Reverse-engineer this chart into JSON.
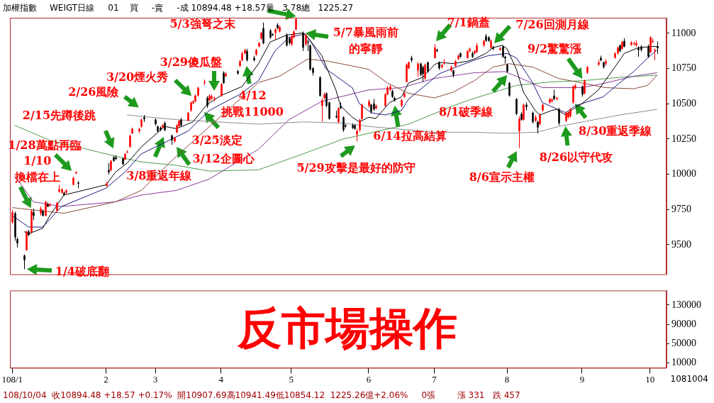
{
  "chart_data": [
    {
      "type": "candlestick",
      "title": "加權指數",
      "subtitle": "WEIGT日線     01    買     -賣     -成 10894.48 +18.57量   3.78總   1225.27",
      "x": [
        "--01-02",
        "--01-03",
        "--01-04",
        "--01-07",
        "--01-08",
        "--01-09",
        "--01-10",
        "--01-11",
        "--01-14",
        "--01-15",
        "--01-16",
        "--01-17",
        "--01-18",
        "--01-21",
        "--01-22",
        "--01-23",
        "--01-24",
        "--01-25",
        "--01-28",
        "--01-29",
        "--01-30",
        "--02-11",
        "--02-12",
        "--02-13",
        "--02-14",
        "--02-15",
        "--02-18",
        "--02-19",
        "--02-20",
        "--02-21",
        "--02-22",
        "--02-25",
        "--02-26",
        "--02-27",
        "--03-04",
        "--03-05",
        "--03-06",
        "--03-07",
        "--03-08",
        "--03-11",
        "--03-12",
        "--03-13",
        "--03-14",
        "--03-15",
        "--03-18",
        "--03-19",
        "--03-20",
        "--03-21",
        "--03-22",
        "--03-25",
        "--03-26",
        "--03-27",
        "--03-28",
        "--03-29",
        "--04-01",
        "--04-02",
        "--04-03",
        "--04-08",
        "--04-09",
        "--04-10",
        "--04-11",
        "--04-12",
        "--04-15",
        "--04-16",
        "--04-17",
        "--04-18",
        "--04-19",
        "--04-22",
        "--04-23",
        "--04-24",
        "--04-25",
        "--04-26",
        "--04-29",
        "--04-30",
        "--05-01",
        "--05-02",
        "--05-03",
        "--05-06",
        "--05-07",
        "--05-08",
        "--05-09",
        "--05-10",
        "--05-13",
        "--05-14",
        "--05-15",
        "--05-16",
        "--05-17",
        "--05-20",
        "--05-21",
        "--05-22",
        "--05-23",
        "--05-24",
        "--05-27",
        "--05-28",
        "--05-29",
        "--05-30",
        "--05-31",
        "--06-03",
        "--06-04",
        "--06-05",
        "--06-06",
        "--06-10",
        "--06-11",
        "--06-12",
        "--06-13",
        "--06-14",
        "--06-17",
        "--06-18",
        "--06-19",
        "--06-20",
        "--06-21",
        "--06-24",
        "--06-25",
        "--06-26",
        "--06-27",
        "--06-28",
        "--07-01",
        "--07-02",
        "--07-03",
        "--07-04",
        "--07-05",
        "--07-08",
        "--07-09",
        "--07-10",
        "--07-11",
        "--07-12",
        "--07-15",
        "--07-16",
        "--07-17",
        "--07-18",
        "--07-19",
        "--07-22",
        "--07-23",
        "--07-24",
        "--07-25",
        "--07-26",
        "--07-29",
        "--07-30",
        "--07-31",
        "--08-01",
        "--08-02",
        "--08-05",
        "--08-06",
        "--08-07",
        "--08-08",
        "--08-09",
        "--08-12",
        "--08-13",
        "--08-14",
        "--08-15",
        "--08-16",
        "--08-19",
        "--08-20",
        "--08-21",
        "--08-22",
        "--08-23",
        "--08-26",
        "--08-27",
        "--08-28",
        "--08-29",
        "--08-30",
        "--09-02",
        "--09-03",
        "--09-04",
        "--09-09",
        "--09-10",
        "--09-11",
        "--09-12",
        "--09-16",
        "--09-17",
        "--09-18",
        "--09-19",
        "--09-20",
        "--09-23",
        "--09-24",
        "--09-25",
        "--09-26",
        "--09-27",
        "--09-30",
        "--10-01",
        "--10-02",
        "--10-03",
        "--10-04"
      ],
      "ohlc": [
        [
          9658,
          9747,
          9650,
          9731
        ],
        [
          9723,
          9735,
          9528,
          9552
        ],
        [
          9540,
          9552,
          9480,
          9510
        ],
        [
          9423,
          9431,
          9326,
          9390
        ],
        [
          9463,
          9600,
          9455,
          9593
        ],
        [
          9593,
          9605,
          9560,
          9569
        ],
        [
          9585,
          9750,
          9580,
          9739
        ],
        [
          9730,
          9755,
          9674,
          9706
        ],
        [
          9723,
          9771,
          9706,
          9755
        ],
        [
          9739,
          9750,
          9700,
          9706
        ],
        [
          9706,
          9812,
          9700,
          9804
        ],
        [
          9787,
          9800,
          9765,
          9771
        ],
        [
          9775,
          9795,
          9770,
          9787
        ],
        [
          9739,
          9804,
          9735,
          9796
        ],
        [
          9877,
          9925,
          9869,
          9893
        ],
        [
          9869,
          9900,
          9860,
          9893
        ],
        [
          9869,
          9877,
          9845,
          9852
        ],
        [
          9869,
          9893,
          9860,
          9885
        ],
        [
          9925,
          9982,
          9920,
          9974
        ],
        [
          10007,
          10020,
          10000,
          10015
        ],
        [
          9941,
          9950,
          9900,
          9933
        ],
        [
          9917,
          9945,
          9910,
          9933
        ],
        [
          10030,
          10079,
          9998,
          10014
        ],
        [
          10030,
          10100,
          10020,
          10095
        ],
        [
          10120,
          10130,
          10088,
          10095
        ],
        [
          10120,
          10135,
          10100,
          10108
        ],
        [
          10112,
          10120,
          10065,
          10071
        ],
        [
          10104,
          10150,
          10100,
          10144
        ],
        [
          10155,
          10170,
          10150,
          10160
        ],
        [
          10193,
          10280,
          10190,
          10274
        ],
        [
          10290,
          10330,
          10285,
          10322
        ],
        [
          10305,
          10330,
          10290,
          10320
        ],
        [
          10339,
          10395,
          10330,
          10387
        ],
        [
          10403,
          10420,
          10371,
          10390
        ],
        [
          10387,
          10395,
          10345,
          10355
        ],
        [
          10339,
          10345,
          10298,
          10306
        ],
        [
          10330,
          10340,
          10305,
          10314
        ],
        [
          10330,
          10355,
          10325,
          10347
        ],
        [
          10363,
          10375,
          10305,
          10314
        ],
        [
          10274,
          10282,
          10209,
          10241
        ],
        [
          10233,
          10265,
          10225,
          10257
        ],
        [
          10298,
          10355,
          10290,
          10347
        ],
        [
          10339,
          10385,
          10330,
          10379
        ],
        [
          10387,
          10400,
          10340,
          10347
        ],
        [
          10379,
          10440,
          10375,
          10436
        ],
        [
          10452,
          10515,
          10445,
          10509
        ],
        [
          10504,
          10525,
          10498,
          10517
        ],
        [
          10517,
          10565,
          10510,
          10558
        ],
        [
          10558,
          10620,
          10550,
          10614
        ],
        [
          10647,
          10671,
          10630,
          10655
        ],
        [
          10541,
          10555,
          10470,
          10485
        ],
        [
          10525,
          10565,
          10515,
          10558
        ],
        [
          10536,
          10565,
          10525,
          10553
        ],
        [
          10533,
          10550,
          10517,
          10541
        ],
        [
          10557,
          10645,
          10550,
          10639
        ],
        [
          10720,
          10730,
          10640,
          10647
        ],
        [
          10695,
          10725,
          10690,
          10712
        ],
        [
          10731,
          10740,
          10705,
          10715
        ],
        [
          10768,
          10810,
          10760,
          10801
        ],
        [
          10809,
          10870,
          10800,
          10857
        ],
        [
          10857,
          10890,
          10850,
          10882
        ],
        [
          10874,
          10890,
          10800,
          10809
        ],
        [
          10825,
          10840,
          10800,
          10809
        ],
        [
          10849,
          10890,
          10840,
          10882
        ],
        [
          10906,
          10940,
          10900,
          10930
        ],
        [
          10963,
          11010,
          10955,
          11003
        ],
        [
          11036,
          11076,
          10922,
          10930
        ],
        [
          11019,
          11030,
          10960,
          10971
        ],
        [
          10995,
          11000,
          10980,
          10987
        ],
        [
          11003,
          11035,
          10955,
          11028
        ],
        [
          11060,
          11071,
          11028,
          11036
        ],
        [
          11012,
          11055,
          11005,
          11044
        ],
        [
          10987,
          11000,
          10905,
          10914
        ],
        [
          10963,
          10975,
          10920,
          10930
        ],
        [
          10922,
          10990,
          10910,
          10979
        ],
        [
          10971,
          11020,
          10965,
          11012
        ],
        [
          11028,
          11104,
          11020,
          11101
        ],
        [
          11003,
          11012,
          10874,
          10898
        ],
        [
          10922,
          10995,
          10910,
          10987
        ],
        [
          10942,
          10955,
          10874,
          10935
        ],
        [
          10914,
          10920,
          10735,
          10744
        ],
        [
          10752,
          10760,
          10700,
          10720
        ],
        [
          10687,
          10695,
          10550,
          10557
        ],
        [
          10485,
          10540,
          10371,
          10525
        ],
        [
          10541,
          10580,
          10530,
          10565
        ],
        [
          10574,
          10580,
          10475,
          10485
        ],
        [
          10509,
          10515,
          10385,
          10395
        ],
        [
          10412,
          10450,
          10395,
          10404
        ],
        [
          10371,
          10475,
          10360,
          10468
        ],
        [
          10485,
          10509,
          10460,
          10468
        ],
        [
          10404,
          10410,
          10300,
          10314
        ],
        [
          10347,
          10355,
          10330,
          10339
        ],
        [
          10347,
          10360,
          10320,
          10330
        ],
        [
          10347,
          10355,
          10315,
          10322
        ],
        [
          10282,
          10322,
          10233,
          10306
        ],
        [
          10314,
          10395,
          10300,
          10384
        ],
        [
          10395,
          10500,
          10385,
          10493
        ],
        [
          10485,
          10530,
          10470,
          10517
        ],
        [
          10493,
          10500,
          10430,
          10444
        ],
        [
          10501,
          10533,
          10450,
          10460
        ],
        [
          10468,
          10495,
          10460,
          10485
        ],
        [
          10485,
          10575,
          10478,
          10566
        ],
        [
          10566,
          10625,
          10560,
          10614
        ],
        [
          10598,
          10635,
          10590,
          10622
        ],
        [
          10590,
          10600,
          10540,
          10549
        ],
        [
          10541,
          10550,
          10515,
          10525
        ],
        [
          10485,
          10535,
          10475,
          10525
        ],
        [
          10549,
          10580,
          10540,
          10574
        ],
        [
          10655,
          10785,
          10650,
          10776
        ],
        [
          10752,
          10800,
          10745,
          10793
        ],
        [
          10825,
          10840,
          10793,
          10809
        ],
        [
          10736,
          10795,
          10690,
          10785
        ],
        [
          10785,
          10790,
          10695,
          10704
        ],
        [
          10760,
          10770,
          10655,
          10712
        ],
        [
          10679,
          10785,
          10670,
          10776
        ],
        [
          10793,
          10800,
          10720,
          10728
        ],
        [
          10825,
          10922,
          10820,
          10898
        ],
        [
          10882,
          10890,
          10865,
          10874
        ],
        [
          10793,
          10800,
          10740,
          10752
        ],
        [
          10760,
          10780,
          10750,
          10776
        ],
        [
          10785,
          10817,
          10777,
          10793
        ],
        [
          10736,
          10770,
          10725,
          10760
        ],
        [
          10736,
          10740,
          10687,
          10704
        ],
        [
          10768,
          10810,
          10760,
          10801
        ],
        [
          10817,
          10850,
          10810,
          10841
        ],
        [
          10857,
          10865,
          10825,
          10833
        ],
        [
          10825,
          10880,
          10820,
          10874
        ],
        [
          10874,
          10898,
          10865,
          10890
        ],
        [
          10857,
          10870,
          10825,
          10833
        ],
        [
          10857,
          10880,
          10850,
          10874
        ],
        [
          10866,
          10930,
          10860,
          10914
        ],
        [
          10914,
          10955,
          10905,
          10946
        ],
        [
          10979,
          10995,
          10940,
          10946
        ],
        [
          10971,
          10980,
          10940,
          10946
        ],
        [
          10898,
          10955,
          10890,
          10946
        ],
        [
          10901,
          10910,
          10880,
          10890
        ],
        [
          10882,
          10900,
          10875,
          10893
        ],
        [
          10906,
          10915,
          10825,
          10833
        ],
        [
          10833,
          10840,
          10785,
          10822
        ],
        [
          10776,
          10785,
          10720,
          10728
        ],
        [
          10647,
          10655,
          10550,
          10558
        ],
        [
          10533,
          10540,
          10420,
          10428
        ],
        [
          10306,
          10412,
          10185,
          10395
        ],
        [
          10428,
          10440,
          10380,
          10387
        ],
        [
          10387,
          10500,
          10380,
          10493
        ],
        [
          10493,
          10509,
          10452,
          10476
        ],
        [
          10436,
          10445,
          10360,
          10371
        ],
        [
          10379,
          10420,
          10371,
          10404
        ],
        [
          10371,
          10380,
          10290,
          10331
        ],
        [
          10355,
          10430,
          10345,
          10420
        ],
        [
          10452,
          10500,
          10445,
          10493
        ],
        [
          10509,
          10540,
          10500,
          10533
        ],
        [
          10517,
          10540,
          10510,
          10530
        ],
        [
          10557,
          10598,
          10525,
          10533
        ],
        [
          10533,
          10550,
          10525,
          10541
        ],
        [
          10460,
          10470,
          10347,
          10363
        ],
        [
          10379,
          10445,
          10370,
          10436
        ],
        [
          10404,
          10445,
          10395,
          10436
        ],
        [
          10412,
          10470,
          10400,
          10460
        ],
        [
          10509,
          10630,
          10500,
          10622
        ],
        [
          10614,
          10640,
          10600,
          10630
        ],
        [
          10622,
          10630,
          10550,
          10565
        ],
        [
          10574,
          10670,
          10565,
          10663
        ],
        [
          10720,
          10768,
          10712,
          10760
        ],
        [
          10776,
          10810,
          10770,
          10793
        ],
        [
          10825,
          10841,
          10800,
          10809
        ],
        [
          10793,
          10800,
          10750,
          10760
        ],
        [
          10785,
          10815,
          10770,
          10801
        ],
        [
          10825,
          10865,
          10820,
          10857
        ],
        [
          10857,
          10905,
          10850,
          10898
        ],
        [
          10914,
          10920,
          10865,
          10874
        ],
        [
          10890,
          10945,
          10885,
          10938
        ],
        [
          10946,
          10965,
          10900,
          10906
        ],
        [
          10919,
          10945,
          10910,
          10935
        ],
        [
          10922,
          10940,
          10915,
          10930
        ],
        [
          10914,
          10950,
          10905,
          10930
        ],
        [
          10893,
          10906,
          10833,
          10880
        ],
        [
          10906,
          10915,
          10870,
          10882
        ],
        [
          10906,
          10920,
          10825,
          10833
        ],
        [
          10865,
          10979,
          10860,
          10971
        ],
        [
          10938,
          10965,
          10930,
          10946
        ],
        [
          10874,
          10890,
          10809,
          10882
        ],
        [
          10907.69,
          10941.49,
          10854.12,
          10894.48
        ]
      ],
      "series": [
        {
          "type": "line",
          "color": "#000000",
          "x": [
            "--01-07",
            "--01-09",
            "--01-15",
            "--01-18",
            "--01-24",
            "--02-11",
            "--02-15",
            "--02-20",
            "--02-26",
            "--03-08",
            "--03-13",
            "--03-20",
            "--03-26",
            "--04-01",
            "--04-10",
            "--04-17",
            "--04-22",
            "--04-29",
            "--05-06",
            "--05-08",
            "--05-14",
            "--05-20",
            "--05-22",
            "--05-27",
            "--05-30",
            "--06-03",
            "--06-06",
            "--06-12",
            "--06-17",
            "--06-20",
            "--06-26",
            "--07-01",
            "--07-03",
            "--07-09",
            "--07-15",
            "--07-18",
            "--07-23",
            "--07-26",
            "--07-30",
            "--08-01",
            "--08-05",
            "--08-08",
            "--08-13",
            "--08-15",
            "--08-20",
            "--08-22",
            "--08-26",
            "--08-29",
            "--09-02",
            "--09-09",
            "--09-16",
            "--09-20",
            "--09-26",
            "--10-02",
            "--10-04"
          ],
          "values": [
            9593,
            9577,
            9617,
            9706,
            9852,
            9925,
            10014,
            10079,
            10193,
            10339,
            10323,
            10371,
            10493,
            10558,
            10622,
            10784,
            10938,
            10987,
            11003,
            10971,
            10841,
            10598,
            10485,
            10404,
            10371,
            10404,
            10395,
            10509,
            10549,
            10647,
            10687,
            10776,
            10793,
            10785,
            10801,
            10817,
            10857,
            10898,
            10914,
            10890,
            10744,
            10582,
            10452,
            10420,
            10452,
            10460,
            10420,
            10460,
            10501,
            10598,
            10760,
            10857,
            10898,
            10906,
            10906
          ]
        },
        {
          "type": "line",
          "color": "#1c1c80",
          "x": [
            "--01-02",
            "--01-09",
            "--01-15",
            "--01-23",
            "--02-11",
            "--02-19",
            "--02-26",
            "--03-18",
            "--03-27",
            "--04-09",
            "--04-17",
            "--04-24",
            "--04-30",
            "--05-07",
            "--05-10",
            "--05-16",
            "--05-27",
            "--05-30",
            "--06-04",
            "--06-10",
            "--06-17",
            "--06-20",
            "--06-26",
            "--07-03",
            "--07-09",
            "--07-18",
            "--07-24",
            "--08-01",
            "--08-05",
            "--08-12",
            "--08-16",
            "--08-26",
            "--08-30",
            "--09-11",
            "--09-18",
            "--09-24",
            "--09-30",
            "--10-04"
          ],
          "values": [
            9707,
            9625,
            9625,
            9771,
            9901,
            10014,
            10144,
            10306,
            10452,
            10566,
            10663,
            10874,
            10971,
            10995,
            10922,
            10744,
            10614,
            10501,
            10436,
            10420,
            10452,
            10533,
            10614,
            10712,
            10752,
            10809,
            10841,
            10857,
            10825,
            10647,
            10509,
            10436,
            10485,
            10549,
            10647,
            10728,
            10825,
            10882
          ]
        },
        {
          "type": "line",
          "color": "#8b4a3a",
          "x": [
            "--01-02",
            "--01-15",
            "--01-24",
            "--02-15",
            "--02-26",
            "--03-13",
            "--04-17",
            "--04-26",
            "--05-08",
            "--05-17",
            "--06-03",
            "--06-11",
            "--06-20",
            "--07-01",
            "--07-09",
            "--07-18",
            "--07-26",
            "--08-02",
            "--08-12",
            "--08-23",
            "--09-02",
            "--09-12",
            "--09-24",
            "--09-30",
            "--10-04"
          ],
          "values": [
            9763,
            9739,
            9723,
            9804,
            9885,
            10128,
            10650,
            10695,
            10817,
            10801,
            10744,
            10647,
            10574,
            10541,
            10582,
            10663,
            10760,
            10784,
            10760,
            10679,
            10647,
            10614,
            10606,
            10630,
            10703
          ]
        },
        {
          "type": "line",
          "color": "#8a3a9a",
          "x": [
            "--01-03",
            "--01-11",
            "--01-23",
            "--02-15",
            "--02-26",
            "--03-13",
            "--03-27",
            "--04-17",
            "--04-30",
            "--05-14",
            "--06-03",
            "--06-17",
            "--07-01",
            "--07-18",
            "--07-31",
            "--08-05",
            "--08-16",
            "--09-02",
            "--09-12",
            "--09-24",
            "--10-04"
          ],
          "values": [
            9990,
            9804,
            9771,
            9804,
            9852,
            9885,
            9966,
            10177,
            10387,
            10517,
            10598,
            10614,
            10679,
            10720,
            10728,
            10695,
            10614,
            10614,
            10647,
            10695,
            10720
          ]
        },
        {
          "type": "line",
          "color": "#4a9a4a",
          "x": [
            "--01-03",
            "--01-18",
            "--02-15",
            "--02-26",
            "--03-13",
            "--03-27",
            "--04-17",
            "--05-06",
            "--05-23",
            "--06-03",
            "--06-20",
            "--07-09",
            "--07-17",
            "--08-05",
            "--08-20",
            "--09-02",
            "--09-18",
            "--10-04"
          ],
          "values": [
            10347,
            10241,
            10128,
            10087,
            10063,
            10022,
            10031,
            10144,
            10249,
            10290,
            10355,
            10485,
            10533,
            10630,
            10655,
            10663,
            10687,
            10703
          ]
        },
        {
          "type": "line",
          "color": "#8c8c8c",
          "x": [
            "--02-20",
            "--03-13",
            "--04-17",
            "--05-06",
            "--05-23",
            "--06-03",
            "--07-01",
            "--07-18",
            "--07-31",
            "--08-14",
            "--08-23",
            "--09-18",
            "--10-04"
          ],
          "values": [
            10420,
            10387,
            10355,
            10371,
            10363,
            10339,
            10298,
            10298,
            10290,
            10298,
            10339,
            10420,
            10460
          ]
        }
      ],
      "xlim": [
        "--01-01",
        "--10-08"
      ],
      "ylim": [
        9290,
        11110
      ],
      "yticks": [
        9500,
        9750,
        10000,
        10250,
        10500,
        10750,
        11000
      ],
      "tick_labels": "y",
      "annotations": [
        "1/4破底翻",
        {
          "text": "1/10\n換檔在上",
          "x": "--01-10",
          "y": 9760
        },
        "1/28萬點再臨",
        "2/15先蹲後跳",
        "2/26風險",
        "3/20煙火秀",
        "3/29傻瓜盤",
        "3/8重返年線",
        "3/12企圖心",
        {
          "text": "3/25淡定",
          "x": "--03-25",
          "y": 10440
        },
        "4/12\n挑戰11000",
        "5/3強弩之末",
        {
          "text": "5/7暴風雨前的寧靜",
          "x": "--05-07",
          "y": 11000
        },
        "5/29攻擊是最好的防守",
        "6/14拉高結算",
        "7/1鍋蓋",
        "7/26回測月線",
        {
          "text": "8/1破季線",
          "x": "--08-01",
          "y": 10700
        },
        "8/6宣示主權",
        {
          "text": "8/26以守代攻",
          "x": "--08-26",
          "y": 10339
        },
        {
          "text": "8/30重返季線",
          "x": "--08-30",
          "y": 10500
        },
        {
          "text": "9/2驚驚漲",
          "x": "--09-02",
          "y": 10680
        }
      ]
    },
    {
      "type": "bar",
      "xlim": [
        "--01-01",
        "--10-08"
      ],
      "xticks": [
        {
          "value": "--01-02",
          "label": "108/1"
        },
        {
          "value": "--02-11",
          "label": "2"
        },
        {
          "value": "--03-04",
          "label": "3"
        },
        {
          "value": "--04-01",
          "label": "4"
        },
        {
          "value": "--05-01",
          "label": "5"
        },
        {
          "value": "--06-03",
          "label": "6"
        },
        {
          "value": "--07-01",
          "label": "7"
        },
        {
          "value": "--08-01",
          "label": "8"
        },
        {
          "value": "--09-02",
          "label": "9"
        },
        {
          "value": "--10-01",
          "label": "10"
        }
      ],
      "ylim": [
        0,
        160000
      ],
      "yticks": [
        10000,
        50000,
        90000,
        130000
      ],
      "annotations": [
        "反市場操作",
        "108/10/04  收10894.48 +18.57 +0.17%  開10907.69高10941.49低10854.12  1225.26億+2.06%     0張        漲 331   跌 457",
        "1081004"
      ]
    }
  ]
}
